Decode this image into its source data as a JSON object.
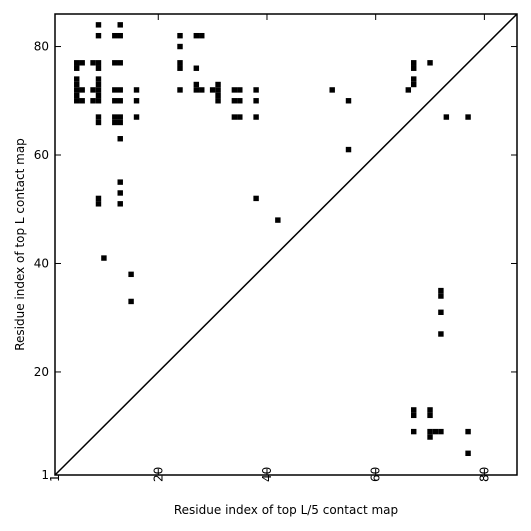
{
  "chart_data": {
    "type": "heatmap",
    "title": "",
    "xlabel": "Residue index of top L/5 contact map",
    "ylabel": "Residue index of top L contact map",
    "xlim": [
      1,
      86
    ],
    "ylim": [
      1,
      86
    ],
    "xticks": [
      1,
      20,
      40,
      60,
      80
    ],
    "yticks": [
      1,
      20,
      40,
      60,
      80
    ],
    "x_tick_rotation": -90,
    "grid": false,
    "diagonal": true,
    "colors": {
      "contact": "#000000",
      "background": "#ffffff",
      "axes": "#000000"
    },
    "lower_triangle": [
      [
        67,
        12
      ],
      [
        67,
        13
      ],
      [
        70,
        12
      ],
      [
        70,
        13
      ],
      [
        67,
        9
      ],
      [
        70,
        8
      ],
      [
        70,
        9
      ],
      [
        71,
        9
      ],
      [
        72,
        9
      ],
      [
        77,
        9
      ],
      [
        77,
        5
      ],
      [
        72,
        27
      ],
      [
        72,
        31
      ],
      [
        72,
        34
      ],
      [
        72,
        35
      ]
    ],
    "upper_triangle": [
      [
        9,
        84
      ],
      [
        13,
        84
      ],
      [
        9,
        82
      ],
      [
        12,
        82
      ],
      [
        13,
        82
      ],
      [
        24,
        82
      ],
      [
        27,
        82
      ],
      [
        28,
        82
      ],
      [
        24,
        80
      ],
      [
        5,
        77
      ],
      [
        6,
        77
      ],
      [
        8,
        77
      ],
      [
        9,
        77
      ],
      [
        12,
        77
      ],
      [
        13,
        77
      ],
      [
        24,
        77
      ],
      [
        67,
        77
      ],
      [
        70,
        77
      ],
      [
        5,
        76
      ],
      [
        9,
        76
      ],
      [
        24,
        76
      ],
      [
        27,
        76
      ],
      [
        67,
        76
      ],
      [
        5,
        74
      ],
      [
        9,
        74
      ],
      [
        67,
        74
      ],
      [
        5,
        73
      ],
      [
        9,
        73
      ],
      [
        27,
        73
      ],
      [
        31,
        73
      ],
      [
        67,
        73
      ],
      [
        5,
        72
      ],
      [
        6,
        72
      ],
      [
        8,
        72
      ],
      [
        9,
        72
      ],
      [
        12,
        72
      ],
      [
        13,
        72
      ],
      [
        16,
        72
      ],
      [
        24,
        72
      ],
      [
        27,
        72
      ],
      [
        28,
        72
      ],
      [
        30,
        72
      ],
      [
        31,
        72
      ],
      [
        34,
        72
      ],
      [
        35,
        72
      ],
      [
        38,
        72
      ],
      [
        52,
        72
      ],
      [
        66,
        72
      ],
      [
        5,
        71
      ],
      [
        9,
        71
      ],
      [
        31,
        71
      ],
      [
        5,
        70
      ],
      [
        6,
        70
      ],
      [
        8,
        70
      ],
      [
        9,
        70
      ],
      [
        12,
        70
      ],
      [
        13,
        70
      ],
      [
        16,
        70
      ],
      [
        31,
        70
      ],
      [
        34,
        70
      ],
      [
        35,
        70
      ],
      [
        38,
        70
      ],
      [
        55,
        70
      ],
      [
        9,
        67
      ],
      [
        12,
        67
      ],
      [
        13,
        67
      ],
      [
        16,
        67
      ],
      [
        34,
        67
      ],
      [
        35,
        67
      ],
      [
        38,
        67
      ],
      [
        73,
        67
      ],
      [
        77,
        67
      ],
      [
        9,
        66
      ],
      [
        12,
        66
      ],
      [
        13,
        66
      ],
      [
        13,
        63
      ],
      [
        55,
        61
      ],
      [
        13,
        55
      ],
      [
        13,
        53
      ],
      [
        9,
        52
      ],
      [
        38,
        52
      ],
      [
        9,
        51
      ],
      [
        13,
        51
      ],
      [
        42,
        48
      ],
      [
        10,
        41
      ],
      [
        15,
        38
      ],
      [
        15,
        33
      ]
    ]
  }
}
